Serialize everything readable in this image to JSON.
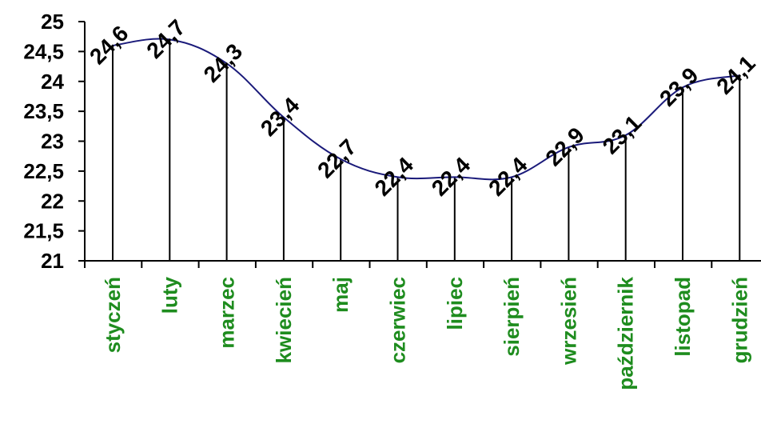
{
  "chart_data": {
    "type": "line",
    "title": "",
    "xlabel": "",
    "ylabel": "",
    "ylim": [
      21,
      25
    ],
    "y_ticks": [
      "21",
      "21,5",
      "22",
      "22,5",
      "23",
      "23,5",
      "24",
      "24,5",
      "25"
    ],
    "categories": [
      "styczeń",
      "luty",
      "marzec",
      "kwiecień",
      "maj",
      "czerwiec",
      "lipiec",
      "sierpień",
      "wrzesień",
      "październik",
      "listopad",
      "grudzień"
    ],
    "values": [
      24.6,
      24.7,
      24.3,
      23.4,
      22.7,
      22.4,
      22.4,
      22.4,
      22.9,
      23.1,
      23.9,
      24.1
    ],
    "value_labels": [
      "24,6",
      "24,7",
      "24,3",
      "23,4",
      "22,7",
      "22,4",
      "22,4",
      "22,4",
      "22,9",
      "23,1",
      "23,9",
      "24,1"
    ],
    "drop_lines": true,
    "smooth": true,
    "grid": false,
    "legend": "none",
    "colors": {
      "line": "#1a1a7a",
      "drop_lines": "#000000",
      "axis": "#000000",
      "category_labels": "#1e8c1e",
      "value_labels": "#000000"
    }
  }
}
